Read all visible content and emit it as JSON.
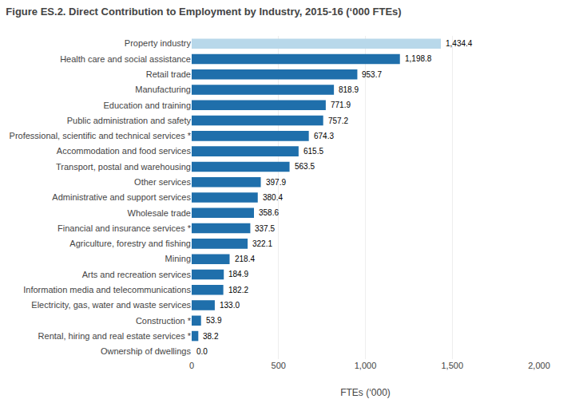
{
  "chart_data": {
    "type": "bar",
    "orientation": "horizontal",
    "title": "Figure ES.2. Direct Contribution to Employment by Industry, 2015-16 (‘000 FTEs)",
    "categories": [
      "Ownership of dwellings",
      "Rental, hiring and real estate services *",
      "Construction *",
      "Electricity, gas, water and waste services",
      "Information media and telecommunications",
      "Arts and recreation services",
      "Mining",
      "Agriculture, forestry and fishing",
      "Financial and insurance services *",
      "Wholesale trade",
      "Administrative and support services",
      "Other services",
      "Transport, postal and warehousing",
      "Accommodation and food services",
      "Professional, scientific and technical services *",
      "Public administration and safety",
      "Education and training",
      "Manufacturing",
      "Retail trade",
      "Health care and social assistance",
      "Property industry"
    ],
    "values": [
      0.0,
      38.2,
      53.9,
      133.0,
      182.2,
      184.9,
      218.4,
      322.1,
      337.5,
      358.6,
      380.4,
      397.9,
      563.5,
      615.5,
      674.3,
      757.2,
      771.9,
      818.9,
      953.7,
      1198.8,
      1434.4
    ],
    "value_labels": [
      "0.0",
      "38.2",
      "53.9",
      "133.0",
      "182.2",
      "184.9",
      "218.4",
      "322.1",
      "337.5",
      "358.6",
      "380.4",
      "397.9",
      "563.5",
      "615.5",
      "674.3",
      "757.2",
      "771.9",
      "818.9",
      "953.7",
      "1,198.8",
      "1,434.4"
    ],
    "colors": [
      "#1f6fab",
      "#1f6fab",
      "#1f6fab",
      "#1f6fab",
      "#1f6fab",
      "#1f6fab",
      "#1f6fab",
      "#1f6fab",
      "#1f6fab",
      "#1f6fab",
      "#1f6fab",
      "#1f6fab",
      "#1f6fab",
      "#1f6fab",
      "#1f6fab",
      "#1f6fab",
      "#1f6fab",
      "#1f6fab",
      "#1f6fab",
      "#1f6fab",
      "#b8d8ea"
    ],
    "xlabel": "FTEs (‘000)",
    "xlim": [
      0,
      2000
    ],
    "xticks": [
      0,
      500,
      {
        "value": 1000,
        "label": "1,000"
      },
      {
        "value": 1500,
        "label": "1,500"
      },
      {
        "value": 2000,
        "label": "2,000"
      }
    ],
    "grid": true,
    "data_labels": true
  }
}
